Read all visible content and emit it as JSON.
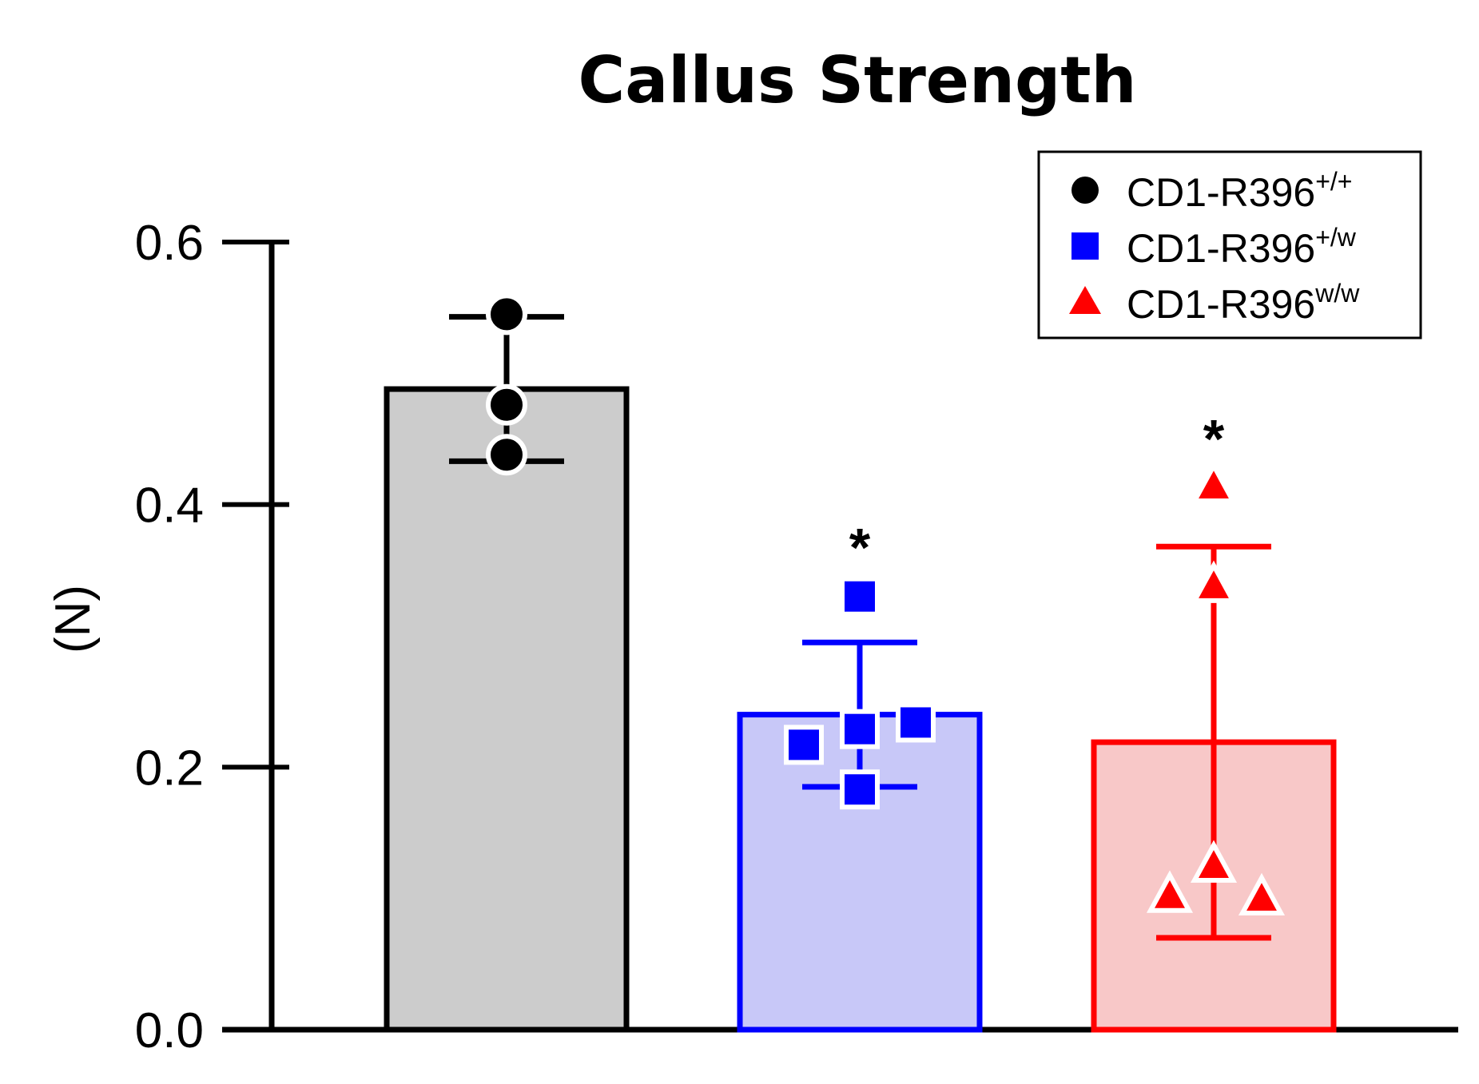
{
  "chart_data": {
    "type": "bar",
    "title": "Callus Strength",
    "xlabel": "",
    "ylabel": "(N)",
    "ylim": [
      0,
      0.6
    ],
    "yticks": [
      0.0,
      0.2,
      0.4,
      0.6
    ],
    "ytick_labels": [
      "0.0",
      "0.2",
      "0.4",
      "0.6"
    ],
    "legend_position": "top-right",
    "groups": [
      {
        "name": "CD1-R396",
        "superscript": "+/+",
        "color": "#000000",
        "fill": "#cccccc",
        "bar_edge": "#000000",
        "marker": "circle",
        "mean": 0.488,
        "sd_low": 0.433,
        "sd_high": 0.543,
        "points": [
          0.545,
          0.476,
          0.438
        ],
        "significance": ""
      },
      {
        "name": "CD1-R396",
        "superscript": "+/w",
        "color": "#0000ff",
        "fill": "#c8c8f8",
        "bar_edge": "#0000ff",
        "marker": "square",
        "mean": 0.24,
        "sd_low": 0.185,
        "sd_high": 0.295,
        "points": [
          0.33,
          0.234,
          0.229,
          0.217,
          0.183
        ],
        "significance": "*"
      },
      {
        "name": "CD1-R396",
        "superscript": "w/w",
        "color": "#ff0000",
        "fill": "#f8c8c8",
        "bar_edge": "#ff0000",
        "marker": "triangle",
        "mean": 0.219,
        "sd_low": 0.07,
        "sd_high": 0.368,
        "points": [
          0.413,
          0.337,
          0.124,
          0.101,
          0.099
        ],
        "significance": "*"
      }
    ]
  }
}
